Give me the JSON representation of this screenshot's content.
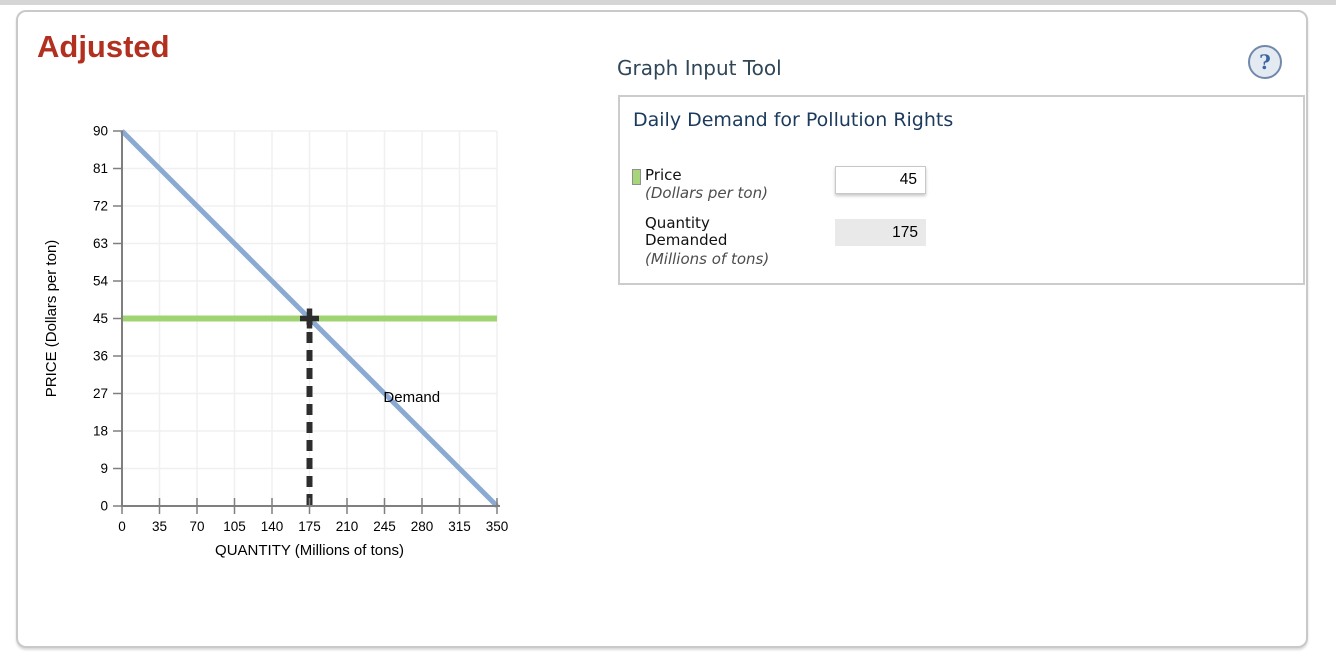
{
  "page": {
    "title": "Adjusted"
  },
  "graph_tool": {
    "header": "Graph Input Tool",
    "help_icon": "?",
    "panel": {
      "title": "Daily Demand for Pollution Rights",
      "fields": [
        {
          "label": "Price",
          "sublabel": "(Dollars per ton)",
          "value": "45",
          "editable": true,
          "marker_color": "#a8d47c"
        },
        {
          "label": "Quantity Demanded",
          "sublabel": "(Millions of tons)",
          "value": "175",
          "editable": false
        }
      ]
    }
  },
  "chart_data": {
    "type": "line",
    "title": "",
    "xlabel": "QUANTITY (Millions of tons)",
    "ylabel": "PRICE (Dollars per ton)",
    "xlim": [
      0,
      350
    ],
    "ylim": [
      0,
      90
    ],
    "xticks": [
      0,
      35,
      70,
      105,
      140,
      175,
      210,
      245,
      280,
      315,
      350
    ],
    "yticks": [
      0,
      9,
      18,
      27,
      36,
      45,
      54,
      63,
      72,
      81,
      90
    ],
    "grid": true,
    "legend_position": "none",
    "colors": {
      "axis": "#7f7f7f",
      "grid": "#f0f0f0",
      "demand": "#8aa9d3",
      "price_line": "#a0d473",
      "guide": "#2d2d2d"
    },
    "series": [
      {
        "name": "Demand",
        "type": "line",
        "color": "#8aa9d3",
        "points": [
          [
            0,
            90
          ],
          [
            350,
            0
          ]
        ],
        "label_pos": [
          244,
          27.5
        ]
      },
      {
        "name": "price-line",
        "type": "hline",
        "color": "#a0d473",
        "y": 45
      },
      {
        "name": "quantity-guide",
        "type": "vline-dashed",
        "color": "#2d2d2d",
        "x": 175,
        "from_y": 0,
        "to_y": 45
      },
      {
        "name": "intersection-marker",
        "type": "cross",
        "color": "#2d2d2d",
        "x": 175,
        "y": 45
      }
    ]
  }
}
